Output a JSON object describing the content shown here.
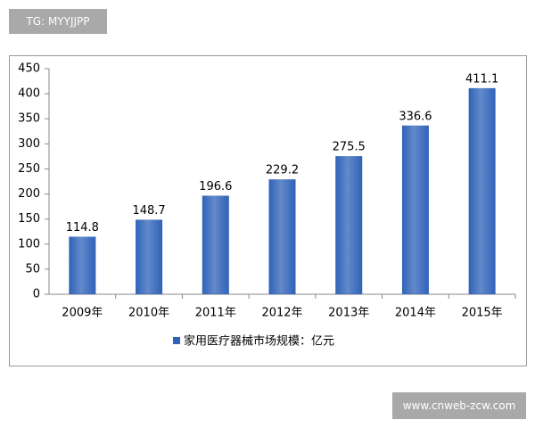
{
  "header_badge": "TG: MYYJJPP",
  "footer_badge": "www.cnweb-zcw.com",
  "chart_data": {
    "type": "bar",
    "categories": [
      "2009年",
      "2010年",
      "2011年",
      "2012年",
      "2013年",
      "2014年",
      "2015年"
    ],
    "series": [
      {
        "name": "家用医疗器械市场规模：亿元",
        "color": "#2f62b8",
        "values": [
          114.8,
          148.7,
          196.6,
          229.2,
          275.5,
          336.6,
          411.1
        ]
      }
    ],
    "ylim": [
      0,
      450
    ],
    "yticks": [
      0,
      50,
      100,
      150,
      200,
      250,
      300,
      350,
      400,
      450
    ],
    "grid": false,
    "legend": "bottom"
  }
}
